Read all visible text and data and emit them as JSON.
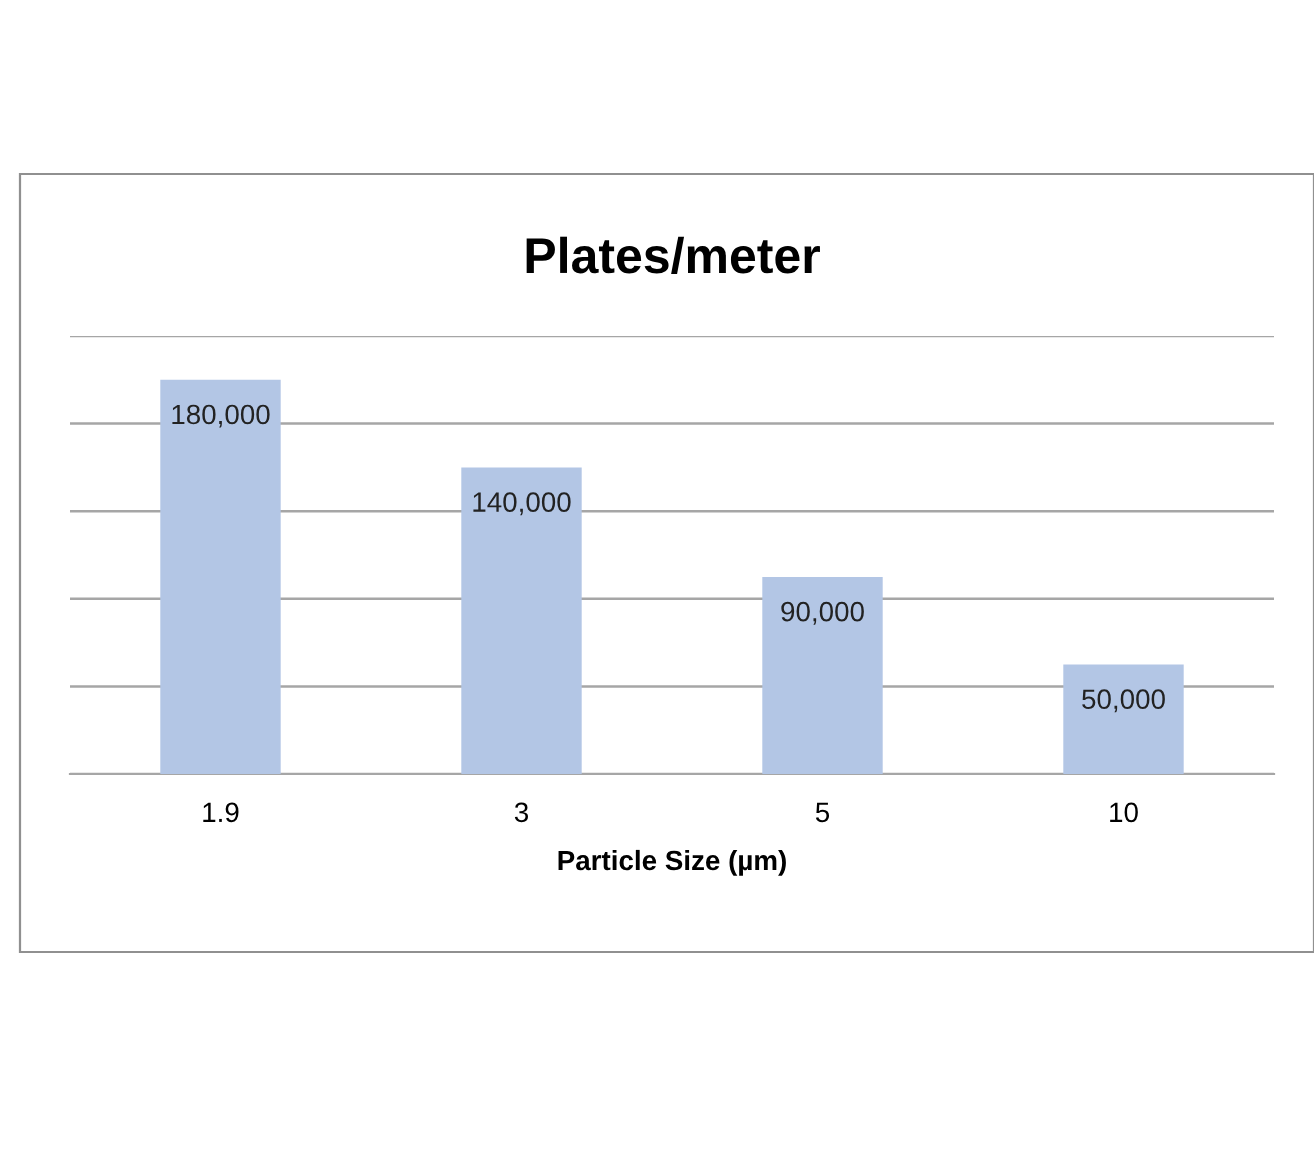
{
  "chart_data": {
    "type": "bar",
    "title": "Plates/meter",
    "xlabel": "Particle Size (µm)",
    "categories": [
      "1.9",
      "3",
      "5",
      "10"
    ],
    "values": [
      180000,
      140000,
      90000,
      50000
    ],
    "value_labels": [
      "180,000",
      "140,000",
      "90,000",
      "50,000"
    ],
    "color": "#b3c6e5",
    "ylim": [
      0,
      200000
    ],
    "yticks": [
      {
        "value": 0,
        "label": null
      },
      {
        "value": 40000,
        "label": null
      },
      {
        "value": 80000,
        "label": null
      },
      {
        "value": 120000,
        "label": null
      },
      {
        "value": 160000,
        "label": null
      },
      {
        "value": 200000,
        "label": null
      }
    ],
    "tick_labels": "x",
    "grid": "y",
    "legend": false
  }
}
